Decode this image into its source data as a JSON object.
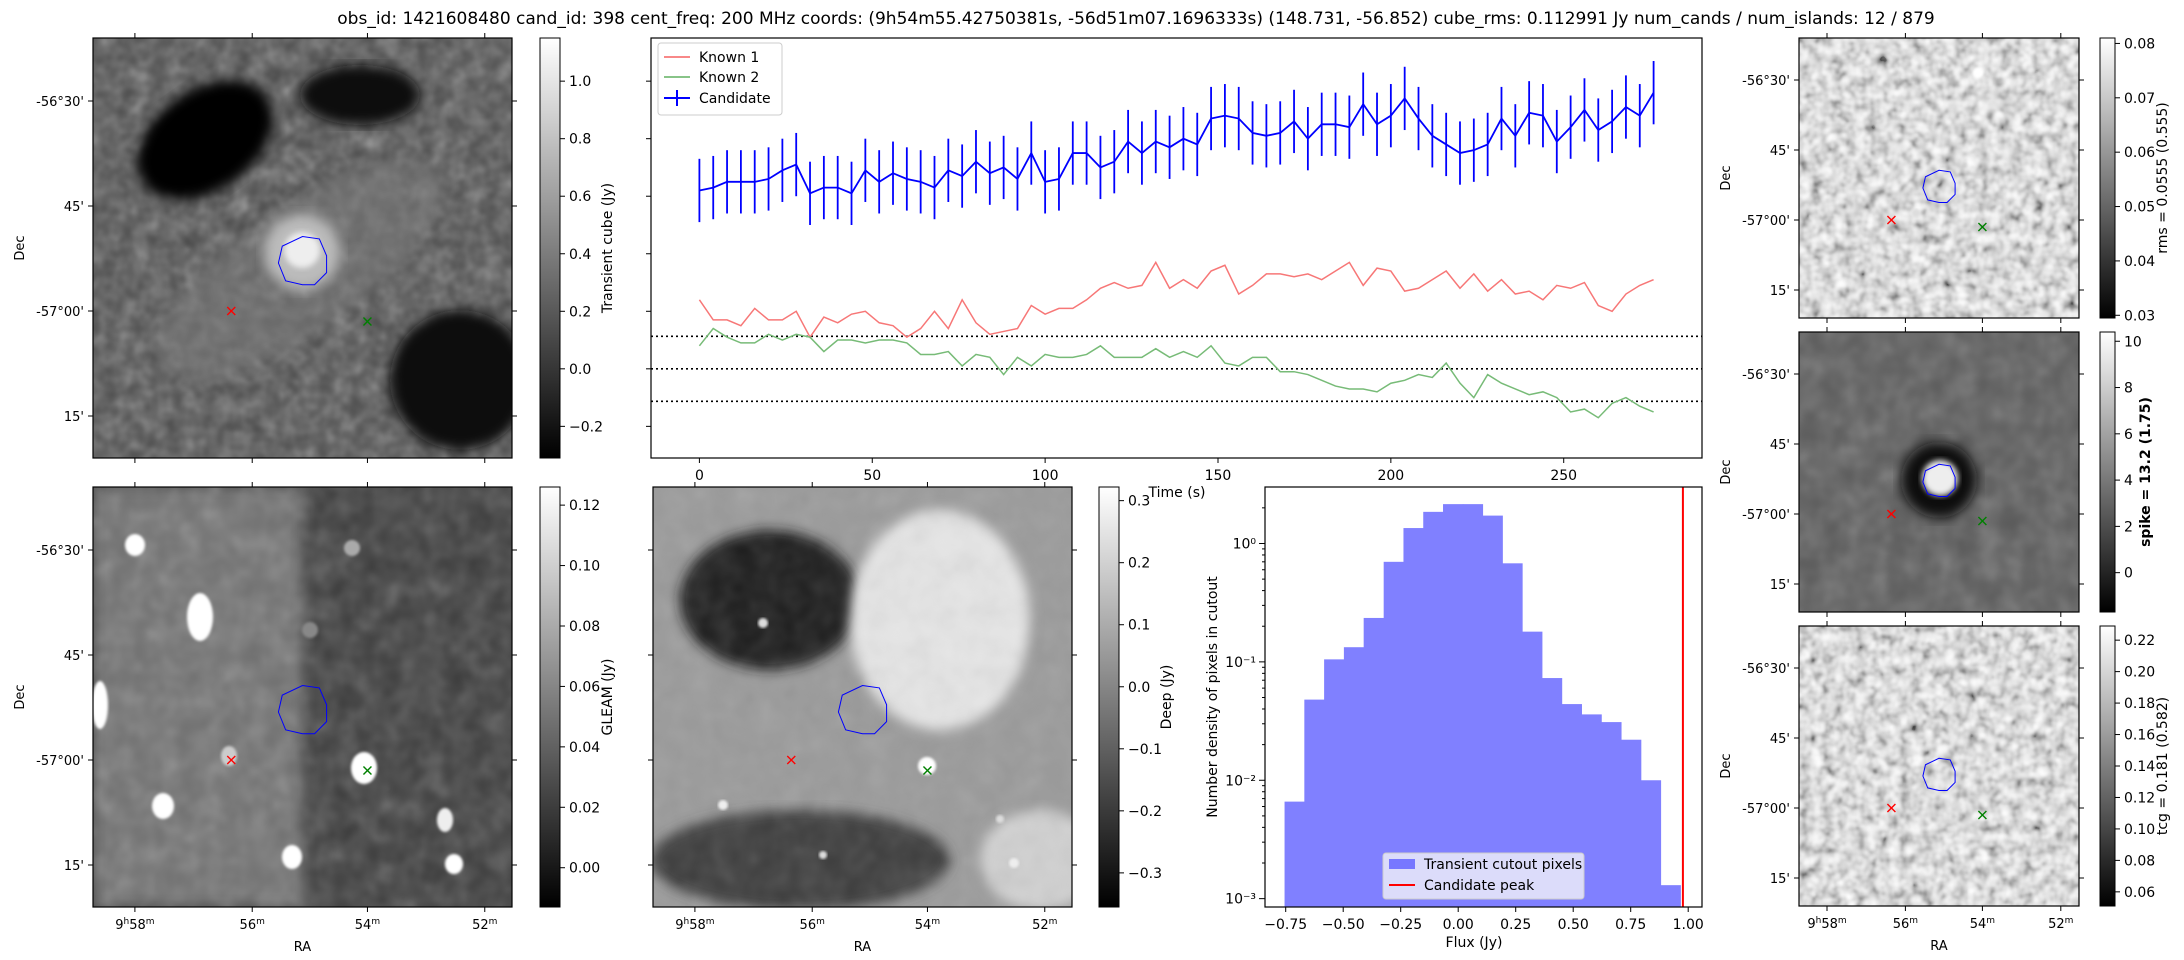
{
  "title": "obs_id: 1421608480 cand_id: 398 cent_freq: 200 MHz coords: (9h54m55.42750381s, -56d51m07.1696333s) (148.731, -56.852) cube_rms: 0.112991 Jy num_cands / num_islands: 12 / 879",
  "sky_axes": {
    "ra_label": "RA",
    "dec_label": "Dec",
    "ra_ticks": [
      "9h58m",
      "56m",
      "54m",
      "52m"
    ],
    "dec_ticks": [
      "-56°30'",
      "45'",
      "-57°00'",
      "15'"
    ]
  },
  "markers": {
    "known1_color": "#ff0000",
    "known2_color": "#008000",
    "candidate_contour_color": "#0000ff"
  },
  "panels": [
    {
      "id": "transient",
      "colorbar_label": "Transient cube (Jy)",
      "ticks": [
        "1.0",
        "0.8",
        "0.6",
        "0.4",
        "0.2",
        "0.0",
        "−0.2"
      ],
      "tick_values": [
        1.0,
        0.8,
        0.6,
        0.4,
        0.2,
        0.0,
        -0.2
      ],
      "range": [
        -0.31,
        1.15
      ]
    },
    {
      "id": "gleam",
      "colorbar_label": "GLEAM (Jy)",
      "ticks": [
        "0.12",
        "0.10",
        "0.08",
        "0.06",
        "0.04",
        "0.02",
        "0.00"
      ],
      "tick_values": [
        0.12,
        0.1,
        0.08,
        0.06,
        0.04,
        0.02,
        0.0
      ],
      "range": [
        -0.013,
        0.126
      ]
    },
    {
      "id": "deep",
      "colorbar_label": "Deep (Jy)",
      "ticks": [
        "0.3",
        "0.2",
        "0.1",
        "0.0",
        "−0.1",
        "−0.2",
        "−0.3"
      ],
      "tick_values": [
        0.3,
        0.2,
        0.1,
        0.0,
        -0.1,
        -0.2,
        -0.3
      ],
      "range": [
        -0.355,
        0.322
      ]
    },
    {
      "id": "rms",
      "colorbar_label": "rms = 0.0555 (0.555)",
      "ticks": [
        "0.08",
        "0.07",
        "0.06",
        "0.05",
        "0.04",
        "0.03"
      ],
      "tick_values": [
        0.08,
        0.07,
        0.06,
        0.05,
        0.04,
        0.03
      ],
      "range": [
        0.0295,
        0.081
      ]
    },
    {
      "id": "spike",
      "colorbar_label": "spike = 13.2 (1.75)",
      "ticks": [
        "10",
        "8",
        "6",
        "4",
        "2",
        "0"
      ],
      "tick_values": [
        10,
        8,
        6,
        4,
        2,
        0
      ],
      "range": [
        -1.7,
        10.4
      ]
    },
    {
      "id": "tcg",
      "colorbar_label": "tcg = 0.181 (0.582)",
      "ticks": [
        "0.22",
        "0.20",
        "0.18",
        "0.16",
        "0.14",
        "0.12",
        "0.10",
        "0.08",
        "0.06"
      ],
      "tick_values": [
        0.22,
        0.2,
        0.18,
        0.16,
        0.14,
        0.12,
        0.1,
        0.08,
        0.06
      ],
      "range": [
        0.051,
        0.229
      ]
    }
  ],
  "chart_data": [
    {
      "type": "line",
      "title": "",
      "xlabel": "Time (s)",
      "ylabel": "Transient cube (Jy)",
      "xlim": [
        -14,
        290
      ],
      "ylim": [
        -0.31,
        1.15
      ],
      "xticks": [
        "0",
        "50",
        "100",
        "150",
        "200",
        "250"
      ],
      "xtick_values": [
        0,
        50,
        100,
        150,
        200,
        250
      ],
      "legend": "top-left",
      "legend_entries": [
        "Known 1",
        "Known 2",
        "Candidate"
      ],
      "hlines": [
        0.113,
        0.0,
        -0.113
      ],
      "x_start": 0,
      "x_step": 4,
      "series": [
        {
          "name": "Known 1",
          "color": "#f77777",
          "values": [
            0.24,
            0.17,
            0.17,
            0.15,
            0.21,
            0.17,
            0.17,
            0.2,
            0.11,
            0.18,
            0.16,
            0.19,
            0.2,
            0.16,
            0.15,
            0.11,
            0.14,
            0.2,
            0.14,
            0.24,
            0.16,
            0.12,
            0.13,
            0.14,
            0.22,
            0.19,
            0.21,
            0.21,
            0.24,
            0.28,
            0.3,
            0.28,
            0.29,
            0.37,
            0.28,
            0.31,
            0.28,
            0.34,
            0.36,
            0.26,
            0.29,
            0.33,
            0.33,
            0.32,
            0.33,
            0.31,
            0.34,
            0.37,
            0.29,
            0.35,
            0.34,
            0.27,
            0.28,
            0.31,
            0.34,
            0.28,
            0.33,
            0.27,
            0.31,
            0.26,
            0.27,
            0.24,
            0.29,
            0.28,
            0.3,
            0.22,
            0.2,
            0.26,
            0.29,
            0.31
          ]
        },
        {
          "name": "Known 2",
          "color": "#77bb77",
          "values": [
            0.08,
            0.14,
            0.11,
            0.09,
            0.09,
            0.12,
            0.1,
            0.12,
            0.11,
            0.06,
            0.1,
            0.1,
            0.09,
            0.1,
            0.1,
            0.09,
            0.05,
            0.05,
            0.06,
            0.01,
            0.05,
            0.04,
            -0.02,
            0.04,
            0.01,
            0.05,
            0.04,
            0.04,
            0.05,
            0.08,
            0.04,
            0.04,
            0.04,
            0.07,
            0.04,
            0.06,
            0.04,
            0.08,
            0.02,
            0.01,
            0.04,
            0.04,
            -0.01,
            -0.01,
            -0.02,
            -0.04,
            -0.06,
            -0.07,
            -0.07,
            -0.08,
            -0.05,
            -0.04,
            -0.02,
            -0.03,
            0.02,
            -0.05,
            -0.1,
            -0.02,
            -0.05,
            -0.07,
            -0.09,
            -0.08,
            -0.1,
            -0.15,
            -0.14,
            -0.17,
            -0.12,
            -0.1,
            -0.13,
            -0.15
          ]
        },
        {
          "name": "Candidate",
          "color": "#0000ff",
          "values": [
            0.62,
            0.63,
            0.65,
            0.65,
            0.65,
            0.66,
            0.69,
            0.71,
            0.61,
            0.63,
            0.63,
            0.61,
            0.69,
            0.65,
            0.68,
            0.66,
            0.65,
            0.63,
            0.69,
            0.67,
            0.72,
            0.68,
            0.7,
            0.66,
            0.75,
            0.65,
            0.66,
            0.75,
            0.75,
            0.7,
            0.72,
            0.79,
            0.75,
            0.79,
            0.77,
            0.8,
            0.78,
            0.87,
            0.88,
            0.87,
            0.82,
            0.81,
            0.82,
            0.86,
            0.8,
            0.85,
            0.85,
            0.84,
            0.92,
            0.85,
            0.88,
            0.94,
            0.87,
            0.81,
            0.78,
            0.75,
            0.76,
            0.78,
            0.87,
            0.81,
            0.89,
            0.88,
            0.79,
            0.84,
            0.9,
            0.83,
            0.86,
            0.91,
            0.88,
            0.96
          ],
          "errors": [
            0.11,
            0.11,
            0.11,
            0.11,
            0.11,
            0.11,
            0.11,
            0.11,
            0.11,
            0.11,
            0.11,
            0.11,
            0.11,
            0.11,
            0.11,
            0.11,
            0.11,
            0.11,
            0.11,
            0.11,
            0.11,
            0.11,
            0.11,
            0.11,
            0.11,
            0.11,
            0.11,
            0.11,
            0.11,
            0.11,
            0.11,
            0.11,
            0.11,
            0.11,
            0.11,
            0.11,
            0.11,
            0.11,
            0.11,
            0.11,
            0.11,
            0.11,
            0.11,
            0.11,
            0.11,
            0.11,
            0.11,
            0.11,
            0.11,
            0.11,
            0.11,
            0.11,
            0.11,
            0.11,
            0.11,
            0.11,
            0.11,
            0.11,
            0.11,
            0.11,
            0.11,
            0.11,
            0.11,
            0.11,
            0.11,
            0.11,
            0.11,
            0.11,
            0.11,
            0.11
          ]
        }
      ]
    },
    {
      "type": "bar",
      "title": "",
      "xlabel": "Flux (Jy)",
      "ylabel": "Number density of pixels in cutout",
      "yscale": "log",
      "xlim": [
        -0.84,
        1.06
      ],
      "ylim": [
        0.00085,
        3.0
      ],
      "xticks": [
        "−0.75",
        "−0.50",
        "−0.25",
        "0.00",
        "0.25",
        "0.50",
        "0.75",
        "1.00"
      ],
      "xtick_values": [
        -0.75,
        -0.5,
        -0.25,
        0.0,
        0.25,
        0.5,
        0.75,
        1.0
      ],
      "yticks": [
        "10⁻³",
        "10⁻²",
        "10⁻¹",
        "10⁰"
      ],
      "ytick_values": [
        0.001,
        0.01,
        0.1,
        1
      ],
      "legend": "lower-center",
      "legend_entries": [
        "Transient cutout pixels",
        "Candidate peak"
      ],
      "bin_edges": [
        -0.755,
        -0.669,
        -0.583,
        -0.497,
        -0.411,
        -0.324,
        -0.238,
        -0.152,
        -0.066,
        0.02,
        0.106,
        0.192,
        0.278,
        0.364,
        0.45,
        0.536,
        0.622,
        0.708,
        0.794,
        0.88,
        0.966
      ],
      "values": [
        0.0066,
        0.048,
        0.105,
        0.133,
        0.235,
        0.7,
        1.35,
        1.85,
        2.15,
        2.15,
        1.72,
        0.68,
        0.18,
        0.073,
        0.044,
        0.036,
        0.031,
        0.022,
        0.01,
        0.0013
      ],
      "bar_color": "#8080ff",
      "candidate_peak": 0.977,
      "candidate_peak_color": "#ff0000"
    }
  ]
}
